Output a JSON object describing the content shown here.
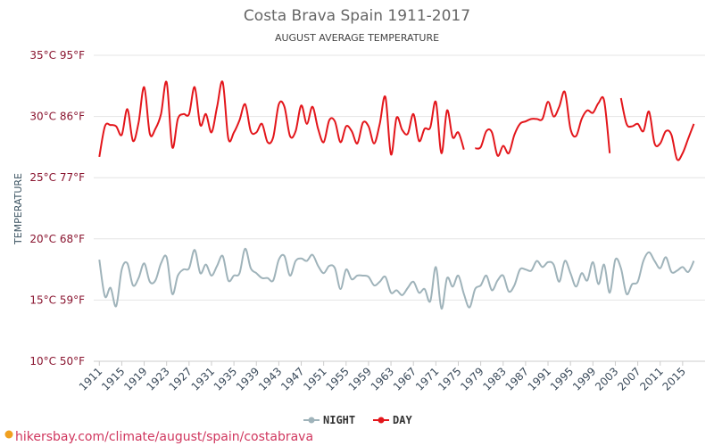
{
  "chart_data": {
    "type": "line",
    "title": "Costa Brava Spain 1911-2017",
    "subtitle": "AUGUST AVERAGE TEMPERATURE",
    "y_label": "TEMPERATURE",
    "source": "hikersbay.com/climate/august/spain/costabrava",
    "x": [
      1911,
      1912,
      1913,
      1914,
      1915,
      1916,
      1917,
      1918,
      1919,
      1920,
      1921,
      1922,
      1923,
      1924,
      1925,
      1926,
      1927,
      1928,
      1929,
      1930,
      1931,
      1932,
      1933,
      1934,
      1935,
      1936,
      1937,
      1938,
      1939,
      1940,
      1941,
      1942,
      1943,
      1944,
      1945,
      1946,
      1947,
      1948,
      1949,
      1950,
      1951,
      1952,
      1953,
      1954,
      1955,
      1956,
      1957,
      1958,
      1959,
      1960,
      1961,
      1962,
      1963,
      1964,
      1965,
      1966,
      1967,
      1968,
      1969,
      1970,
      1971,
      1972,
      1973,
      1974,
      1975,
      1976,
      1977,
      1978,
      1979,
      1980,
      1981,
      1982,
      1983,
      1984,
      1985,
      1986,
      1987,
      1988,
      1989,
      1990,
      1991,
      1992,
      1993,
      1994,
      1995,
      1996,
      1997,
      1998,
      1999,
      2000,
      2001,
      2002,
      2003,
      2004,
      2005,
      2006,
      2007,
      2008,
      2009,
      2010,
      2011,
      2012,
      2013,
      2014,
      2015,
      2016,
      2017
    ],
    "series": [
      {
        "name": "NIGHT",
        "color": "#9fb3ba",
        "values": [
          18.3,
          15.3,
          16.0,
          14.5,
          17.5,
          18.0,
          16.2,
          16.8,
          18.0,
          16.5,
          16.6,
          18.0,
          18.5,
          15.5,
          17.0,
          17.5,
          17.6,
          19.1,
          17.2,
          17.9,
          17.0,
          17.8,
          18.6,
          16.6,
          17.0,
          17.2,
          19.2,
          17.6,
          17.2,
          16.8,
          16.8,
          16.6,
          18.3,
          18.6,
          17.0,
          18.2,
          18.4,
          18.2,
          18.7,
          17.8,
          17.2,
          17.8,
          17.6,
          15.9,
          17.5,
          16.7,
          17.0,
          17.0,
          16.9,
          16.2,
          16.5,
          16.9,
          15.6,
          15.8,
          15.4,
          16.0,
          16.5,
          15.6,
          15.9,
          14.9,
          17.7,
          14.3,
          16.8,
          16.1,
          17.0,
          15.5,
          14.4,
          15.9,
          16.2,
          17.0,
          15.8,
          16.6,
          17.0,
          15.7,
          16.2,
          17.5,
          17.5,
          17.4,
          18.2,
          17.7,
          18.1,
          17.9,
          16.5,
          18.2,
          17.2,
          16.1,
          17.2,
          16.6,
          18.1,
          16.3,
          17.9,
          15.6,
          18.3,
          17.6,
          15.5,
          16.3,
          16.5,
          18.2,
          18.9,
          18.2,
          17.6,
          18.5,
          17.3,
          17.4,
          17.7,
          17.3,
          18.2
        ]
      },
      {
        "name": "DAY",
        "color": "#e3161b",
        "values": [
          26.7,
          29.2,
          29.3,
          29.2,
          28.5,
          30.6,
          28.0,
          29.5,
          32.4,
          28.6,
          29.0,
          30.2,
          32.8,
          27.5,
          29.8,
          30.2,
          30.2,
          32.4,
          29.3,
          30.2,
          28.7,
          30.8,
          32.8,
          28.2,
          28.7,
          29.7,
          31.0,
          28.8,
          28.7,
          29.4,
          27.9,
          28.3,
          31.0,
          30.8,
          28.4,
          28.8,
          30.9,
          29.4,
          30.8,
          29.0,
          27.9,
          29.7,
          29.6,
          27.9,
          29.2,
          28.8,
          27.8,
          29.5,
          29.2,
          27.8,
          29.4,
          31.6,
          26.9,
          29.9,
          28.9,
          28.6,
          30.2,
          28.0,
          29.0,
          29.1,
          31.2,
          27.0,
          30.5,
          28.3,
          28.7,
          27.3,
          null,
          27.4,
          27.5,
          28.8,
          28.7,
          26.8,
          27.6,
          27.0,
          28.5,
          29.4,
          29.6,
          29.8,
          29.8,
          29.8,
          31.2,
          30.0,
          30.8,
          32.0,
          29.0,
          28.4,
          29.8,
          30.5,
          30.3,
          31.1,
          31.3,
          27.0,
          null,
          31.5,
          29.4,
          29.2,
          29.4,
          28.8,
          30.4,
          27.8,
          27.8,
          28.8,
          28.5,
          26.5,
          27.0,
          28.2,
          29.4
        ]
      }
    ],
    "xlim": [
      1910,
      2019
    ],
    "xticks": [
      1911,
      1915,
      1919,
      1923,
      1927,
      1931,
      1935,
      1939,
      1943,
      1947,
      1951,
      1955,
      1959,
      1963,
      1967,
      1971,
      1975,
      1979,
      1983,
      1987,
      1991,
      1995,
      1999,
      2003,
      2007,
      2011,
      2015
    ],
    "ylim": [
      10,
      35
    ],
    "yticks": [
      {
        "value": 10,
        "label": "10°C 50°F"
      },
      {
        "value": 15,
        "label": "15°C 59°F"
      },
      {
        "value": 20,
        "label": "20°C 68°F"
      },
      {
        "value": 25,
        "label": "25°C 77°F"
      },
      {
        "value": 30,
        "label": "30°C 86°F"
      },
      {
        "value": 35,
        "label": "35°C 95°F"
      }
    ],
    "grid": true
  }
}
